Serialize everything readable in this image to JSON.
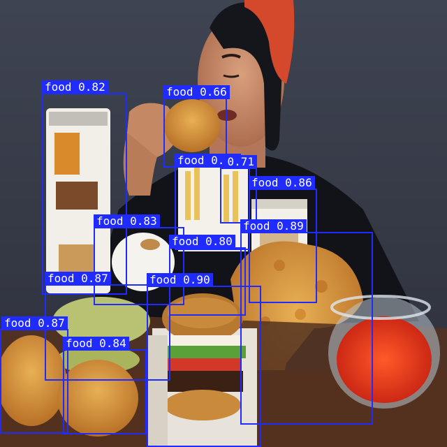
{
  "detections": [
    {
      "label": "food 0.82"
    },
    {
      "label": "food 0.66"
    },
    {
      "label": "food 0.78"
    },
    {
      "label": "0.71"
    },
    {
      "label": "food 0.86"
    },
    {
      "label": "food 0.83"
    },
    {
      "label": "food 0.89"
    },
    {
      "label": "food 0.80"
    },
    {
      "label": "food 0.87"
    },
    {
      "label": "food 0.90"
    },
    {
      "label": "food 0.87"
    },
    {
      "label": "food 0.84"
    }
  ],
  "colors": {
    "box": "#1f2bff",
    "label_text": "#ffffff"
  }
}
